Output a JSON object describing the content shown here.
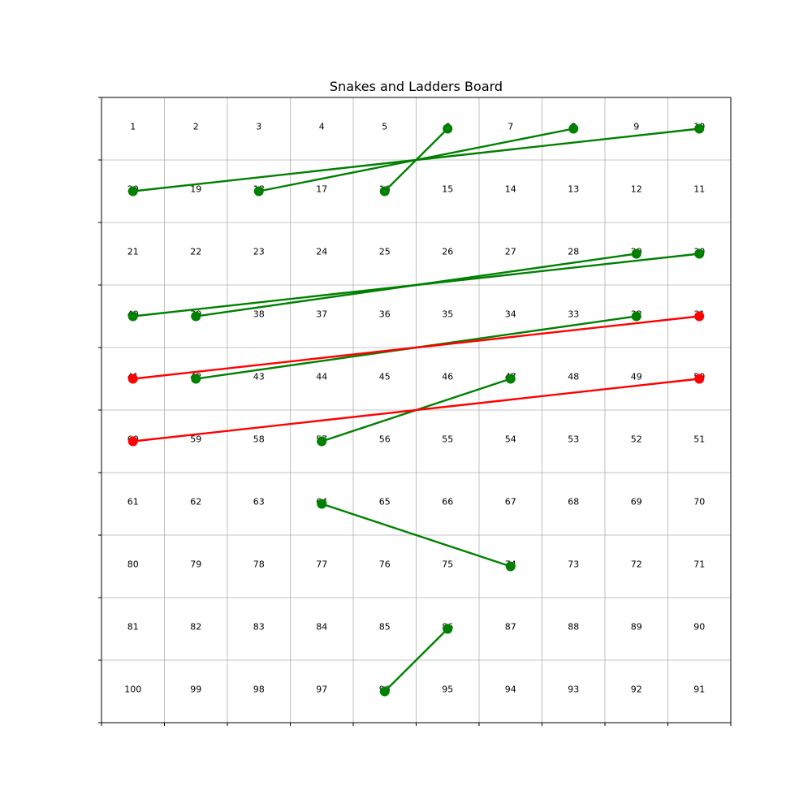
{
  "chart_data": {
    "type": "scatter",
    "title": "Snakes and Ladders Board",
    "board": {
      "rows": [
        [
          1,
          2,
          3,
          4,
          5,
          6,
          7,
          8,
          9,
          10
        ],
        [
          20,
          19,
          18,
          17,
          16,
          15,
          14,
          13,
          12,
          11
        ],
        [
          21,
          22,
          23,
          24,
          25,
          26,
          27,
          28,
          29,
          30
        ],
        [
          40,
          39,
          38,
          37,
          36,
          35,
          34,
          33,
          32,
          31
        ],
        [
          41,
          42,
          43,
          44,
          45,
          46,
          47,
          48,
          49,
          50
        ],
        [
          60,
          59,
          58,
          57,
          56,
          55,
          54,
          53,
          52,
          51
        ],
        [
          61,
          62,
          63,
          64,
          65,
          66,
          67,
          68,
          69,
          70
        ],
        [
          80,
          79,
          78,
          77,
          76,
          75,
          74,
          73,
          72,
          71
        ],
        [
          81,
          82,
          83,
          84,
          85,
          86,
          87,
          88,
          89,
          90
        ],
        [
          100,
          99,
          98,
          97,
          96,
          95,
          94,
          93,
          92,
          91
        ]
      ]
    },
    "grid": true,
    "series": [
      {
        "color": "#008000",
        "links": [
          [
            16,
            6
          ],
          [
            18,
            8
          ],
          [
            20,
            10
          ],
          [
            40,
            30
          ],
          [
            39,
            29
          ],
          [
            42,
            32
          ],
          [
            57,
            47
          ],
          [
            64,
            74
          ],
          [
            96,
            86
          ]
        ]
      },
      {
        "color": "#ff0000",
        "links": [
          [
            41,
            31
          ],
          [
            60,
            50
          ]
        ]
      }
    ]
  },
  "colors": {
    "ladder": "#008000",
    "snake": "#ff0000",
    "grid": "#b0b0b0"
  }
}
